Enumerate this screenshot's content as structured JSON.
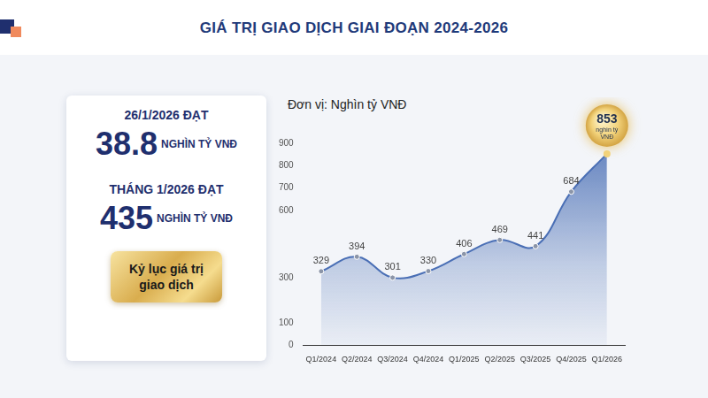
{
  "header": {
    "title": "GIÁ TRỊ GIAO DỊCH GIAI ĐOẠN 2024-2026"
  },
  "panel": {
    "stats": [
      {
        "caption": "26/1/2026 ĐẠT",
        "value": "38.8",
        "unit": "NGHÌN TỶ VNĐ"
      },
      {
        "caption": "THÁNG 1/2026 ĐẠT",
        "value": "435",
        "unit": "NGHÌN TỶ VNĐ"
      }
    ],
    "badge": "Kỷ lục giá trị giao dịch"
  },
  "chart_data": {
    "type": "line",
    "subtitle": "Đơn vị: Nghìn tỷ VNĐ",
    "categories": [
      "Q1/2024",
      "Q2/2024",
      "Q3/2024",
      "Q4/2024",
      "Q1/2025",
      "Q2/2025",
      "Q3/2025",
      "Q4/2025",
      "Q1/2026"
    ],
    "values": [
      329,
      394,
      301,
      330,
      406,
      469,
      441,
      684,
      853
    ],
    "color": "#4a6fb5",
    "ylim": [
      0,
      900
    ],
    "yticks": [
      0,
      100,
      300,
      600,
      700,
      800,
      900
    ],
    "grid": false,
    "data_labels": true,
    "annotations": [
      {
        "category": "Q1/2026",
        "text": "nghìn tỷ VNĐ"
      }
    ]
  }
}
